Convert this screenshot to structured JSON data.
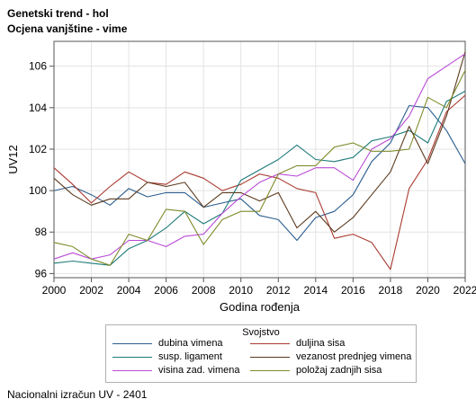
{
  "header": {
    "title": "Genetski trend - hol",
    "subtitle": "Ocjena vanjštine - vime"
  },
  "footer": {
    "note": "Nacionalni izračun UV - 2401"
  },
  "chart_data": {
    "type": "line",
    "xlabel": "Godina rođenja",
    "ylabel": "UV12",
    "xlim": [
      2000,
      2022
    ],
    "ylim": [
      95.8,
      107.2
    ],
    "xticks": [
      2000,
      2002,
      2004,
      2006,
      2008,
      2010,
      2012,
      2014,
      2016,
      2018,
      2020,
      2022
    ],
    "yticks": [
      96,
      98,
      100,
      102,
      104,
      106
    ],
    "grid": true,
    "legend_title": "Svojstvo",
    "legend_position": "bottom",
    "x": [
      2000,
      2001,
      2002,
      2003,
      2004,
      2005,
      2006,
      2007,
      2008,
      2009,
      2010,
      2011,
      2012,
      2013,
      2014,
      2015,
      2016,
      2017,
      2018,
      2019,
      2020,
      2021,
      2022
    ],
    "series": [
      {
        "name": "dubina vimena",
        "color": "#2a5d8e",
        "values": [
          100.0,
          100.2,
          99.8,
          99.3,
          100.1,
          99.7,
          99.9,
          99.9,
          99.2,
          99.4,
          99.6,
          98.8,
          98.6,
          97.6,
          98.7,
          99.0,
          99.8,
          101.4,
          102.3,
          104.1,
          104.0,
          102.9,
          101.3
        ]
      },
      {
        "name": "duljina sisa",
        "color": "#a93a2f",
        "values": [
          101.1,
          100.3,
          99.4,
          100.2,
          100.9,
          100.4,
          100.3,
          100.9,
          100.6,
          100.0,
          100.3,
          100.8,
          100.6,
          100.1,
          99.9,
          97.7,
          97.9,
          97.5,
          96.2,
          100.1,
          101.5,
          103.8,
          104.6
        ]
      },
      {
        "name": "susp. ligament",
        "color": "#1f7a7a",
        "values": [
          96.5,
          96.6,
          96.5,
          96.4,
          97.2,
          97.6,
          98.2,
          99.0,
          98.4,
          98.9,
          100.5,
          101.0,
          101.5,
          102.2,
          101.5,
          101.4,
          101.6,
          102.4,
          102.6,
          102.9,
          102.3,
          104.3,
          104.8
        ]
      },
      {
        "name": "vezanost prednjeg vimena",
        "color": "#5c3a1e",
        "values": [
          100.6,
          99.8,
          99.3,
          99.6,
          99.6,
          100.4,
          100.2,
          100.4,
          99.2,
          99.9,
          99.9,
          99.5,
          99.9,
          98.2,
          99.0,
          98.0,
          98.7,
          99.8,
          100.9,
          103.1,
          101.3,
          103.6,
          106.7
        ]
      },
      {
        "name": "visina zad. vimena",
        "color": "#b94ad6",
        "values": [
          96.7,
          97.0,
          96.7,
          96.9,
          97.6,
          97.6,
          97.3,
          97.8,
          97.9,
          98.9,
          99.7,
          100.4,
          100.8,
          100.7,
          101.1,
          101.1,
          100.5,
          102.0,
          102.5,
          103.6,
          105.4,
          106.0,
          106.6
        ]
      },
      {
        "name": "položaj zadnjih sisa",
        "color": "#7f8a2a",
        "values": [
          97.5,
          97.3,
          96.7,
          96.4,
          97.9,
          97.6,
          99.1,
          99.0,
          97.4,
          98.6,
          99.0,
          99.0,
          100.8,
          101.2,
          101.2,
          102.1,
          102.3,
          101.9,
          101.9,
          102.0,
          104.5,
          104.0,
          105.8
        ]
      }
    ]
  }
}
